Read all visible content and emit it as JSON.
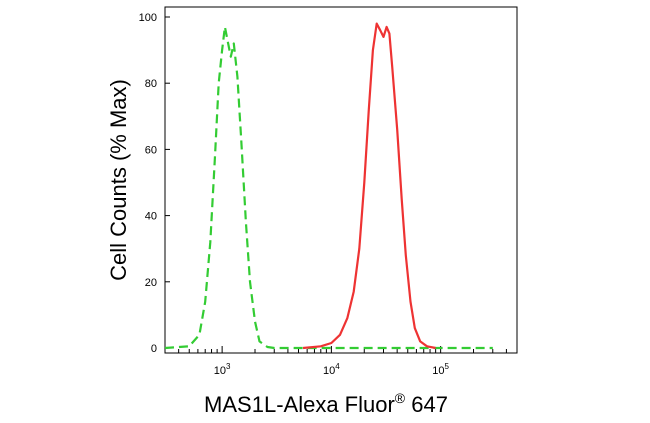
{
  "chart_data": {
    "type": "line",
    "xscale": "log",
    "xlim": [
      300,
      500000
    ],
    "ylim": [
      0,
      100
    ],
    "ylabel": "Cell Counts (% Max)",
    "xlabel": {
      "main": "MAS1L-Alexa Fluor",
      "superscript": "®",
      "suffix": " 647"
    },
    "y_ticks": [
      0,
      20,
      40,
      60,
      80,
      100
    ],
    "x_tick_labels": [
      {
        "base": "10",
        "exp": "3",
        "value": 1000
      },
      {
        "base": "10",
        "exp": "4",
        "value": 10000
      },
      {
        "base": "10",
        "exp": "5",
        "value": 100000
      }
    ],
    "grid": false,
    "series": [
      {
        "color": "#33cc33",
        "style": "dashed",
        "points": [
          [
            300,
            0
          ],
          [
            500,
            0.5
          ],
          [
            620,
            4
          ],
          [
            700,
            14
          ],
          [
            780,
            32
          ],
          [
            860,
            58
          ],
          [
            930,
            80
          ],
          [
            1000,
            90
          ],
          [
            1060,
            97
          ],
          [
            1120,
            93
          ],
          [
            1200,
            88
          ],
          [
            1280,
            92
          ],
          [
            1380,
            82
          ],
          [
            1500,
            62
          ],
          [
            1650,
            38
          ],
          [
            1800,
            20
          ],
          [
            2000,
            8
          ],
          [
            2200,
            2
          ],
          [
            2600,
            0.3
          ],
          [
            3000,
            0
          ],
          [
            300000,
            0
          ]
        ]
      },
      {
        "color": "#ee3333",
        "style": "solid",
        "points": [
          [
            5500,
            0
          ],
          [
            8000,
            0.5
          ],
          [
            10000,
            1.5
          ],
          [
            12000,
            4
          ],
          [
            14000,
            9
          ],
          [
            16000,
            17
          ],
          [
            18000,
            30
          ],
          [
            20000,
            50
          ],
          [
            22000,
            72
          ],
          [
            24000,
            90
          ],
          [
            26000,
            98
          ],
          [
            28000,
            96
          ],
          [
            30000,
            94
          ],
          [
            32000,
            97
          ],
          [
            34000,
            95
          ],
          [
            36000,
            85
          ],
          [
            40000,
            66
          ],
          [
            44000,
            45
          ],
          [
            48000,
            28
          ],
          [
            53000,
            14
          ],
          [
            58000,
            6
          ],
          [
            65000,
            2
          ],
          [
            75000,
            0.5
          ],
          [
            90000,
            0
          ]
        ]
      }
    ]
  }
}
